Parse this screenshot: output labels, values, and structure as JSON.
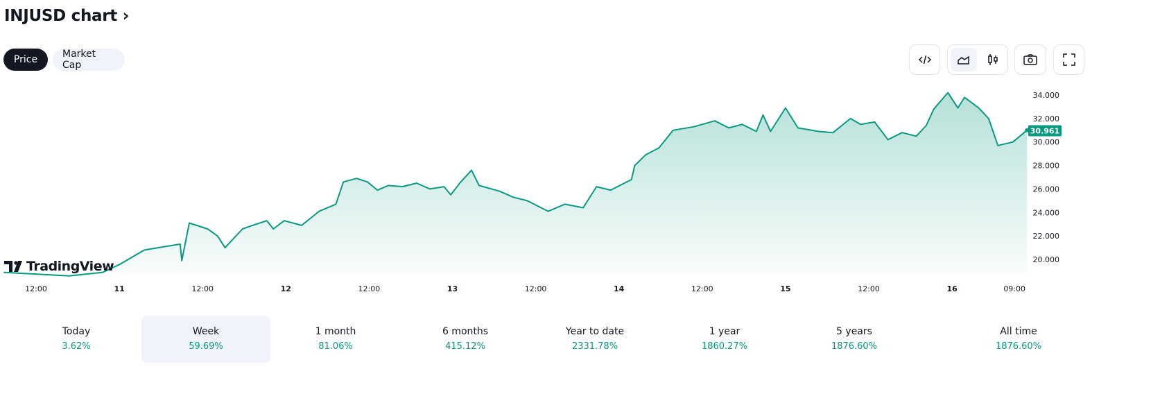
{
  "header": {
    "title": "INJUSD chart",
    "chevron": "›"
  },
  "tabs": [
    {
      "label": "Price",
      "active": true
    },
    {
      "label": "Market Cap",
      "active": false
    }
  ],
  "toolbar": {
    "icons": [
      "embed-code-icon",
      "area-chart-icon",
      "candlestick-icon",
      "camera-icon",
      "fullscreen-icon"
    ]
  },
  "watermark": "TradingView",
  "colors": {
    "line": "#089981",
    "fill": "#089981",
    "accent": "#131722"
  },
  "chart_data": {
    "type": "area",
    "title": "INJUSD",
    "ylim": [
      18.5,
      34.8
    ],
    "yticks": [
      "34.000",
      "32.000",
      "30.000",
      "28.000",
      "26.000",
      "24.000",
      "22.000",
      "20.000"
    ],
    "ytick_values": [
      34,
      32,
      30,
      28,
      26,
      24,
      22,
      20
    ],
    "last_price": "30.961",
    "last_value": 30.961,
    "xticks": [
      {
        "label": "12:00",
        "t": 0
      },
      {
        "label": "11",
        "t": 1
      },
      {
        "label": "12:00",
        "t": 2
      },
      {
        "label": "12",
        "t": 3
      },
      {
        "label": "12:00",
        "t": 4
      },
      {
        "label": "13",
        "t": 5
      },
      {
        "label": "12:00",
        "t": 6
      },
      {
        "label": "14",
        "t": 7
      },
      {
        "label": "12:00",
        "t": 8
      },
      {
        "label": "15",
        "t": 9
      },
      {
        "label": "12:00",
        "t": 10
      },
      {
        "label": "16",
        "t": 11
      },
      {
        "label": "09:00",
        "t": 11.75
      }
    ],
    "x": [
      -0.39,
      0.4,
      0.8,
      1.01,
      1.3,
      1.55,
      1.73,
      1.75,
      1.84,
      2.06,
      2.18,
      2.27,
      2.48,
      2.6,
      2.77,
      2.85,
      2.98,
      3.19,
      3.4,
      3.6,
      3.69,
      3.85,
      3.98,
      4.1,
      4.23,
      4.4,
      4.57,
      4.73,
      4.9,
      4.98,
      5.1,
      5.23,
      5.32,
      5.57,
      5.73,
      5.9,
      6.15,
      6.35,
      6.57,
      6.73,
      6.9,
      7.15,
      7.19,
      7.32,
      7.48,
      7.65,
      7.9,
      8.15,
      8.32,
      8.48,
      8.65,
      8.73,
      8.82,
      9.0,
      9.15,
      9.4,
      9.57,
      9.78,
      9.9,
      10.07,
      10.23,
      10.4,
      10.57,
      10.69,
      10.78,
      10.95,
      11.07,
      11.15,
      11.32,
      11.44,
      11.55,
      11.73,
      11.9
    ],
    "values": [
      18.9,
      18.6,
      18.9,
      19.6,
      20.8,
      21.1,
      21.3,
      19.9,
      23.1,
      22.6,
      22.0,
      21.0,
      22.6,
      22.9,
      23.3,
      22.6,
      23.3,
      22.9,
      24.1,
      24.7,
      26.6,
      26.9,
      26.6,
      25.9,
      26.3,
      26.2,
      26.5,
      26.0,
      26.2,
      25.5,
      26.6,
      27.6,
      26.3,
      25.8,
      25.3,
      25.0,
      24.1,
      24.7,
      24.4,
      26.2,
      25.9,
      26.8,
      28.0,
      28.9,
      29.5,
      31.0,
      31.3,
      31.8,
      31.2,
      31.5,
      30.9,
      32.3,
      30.9,
      32.9,
      31.2,
      30.9,
      30.8,
      32.0,
      31.5,
      31.7,
      30.2,
      30.8,
      30.5,
      31.4,
      32.8,
      34.2,
      32.9,
      33.8,
      32.9,
      32.0,
      29.7,
      30.0,
      31.0
    ]
  },
  "periods": [
    {
      "label": "Today",
      "value": "3.62%"
    },
    {
      "label": "Week",
      "value": "59.69%",
      "selected": true
    },
    {
      "label": "1 month",
      "value": "81.06%"
    },
    {
      "label": "6 months",
      "value": "415.12%"
    },
    {
      "label": "Year to date",
      "value": "2331.78%"
    },
    {
      "label": "1 year",
      "value": "1860.27%"
    },
    {
      "label": "5 years",
      "value": "1876.60%"
    },
    {
      "label": "All time",
      "value": "1876.60%"
    }
  ]
}
